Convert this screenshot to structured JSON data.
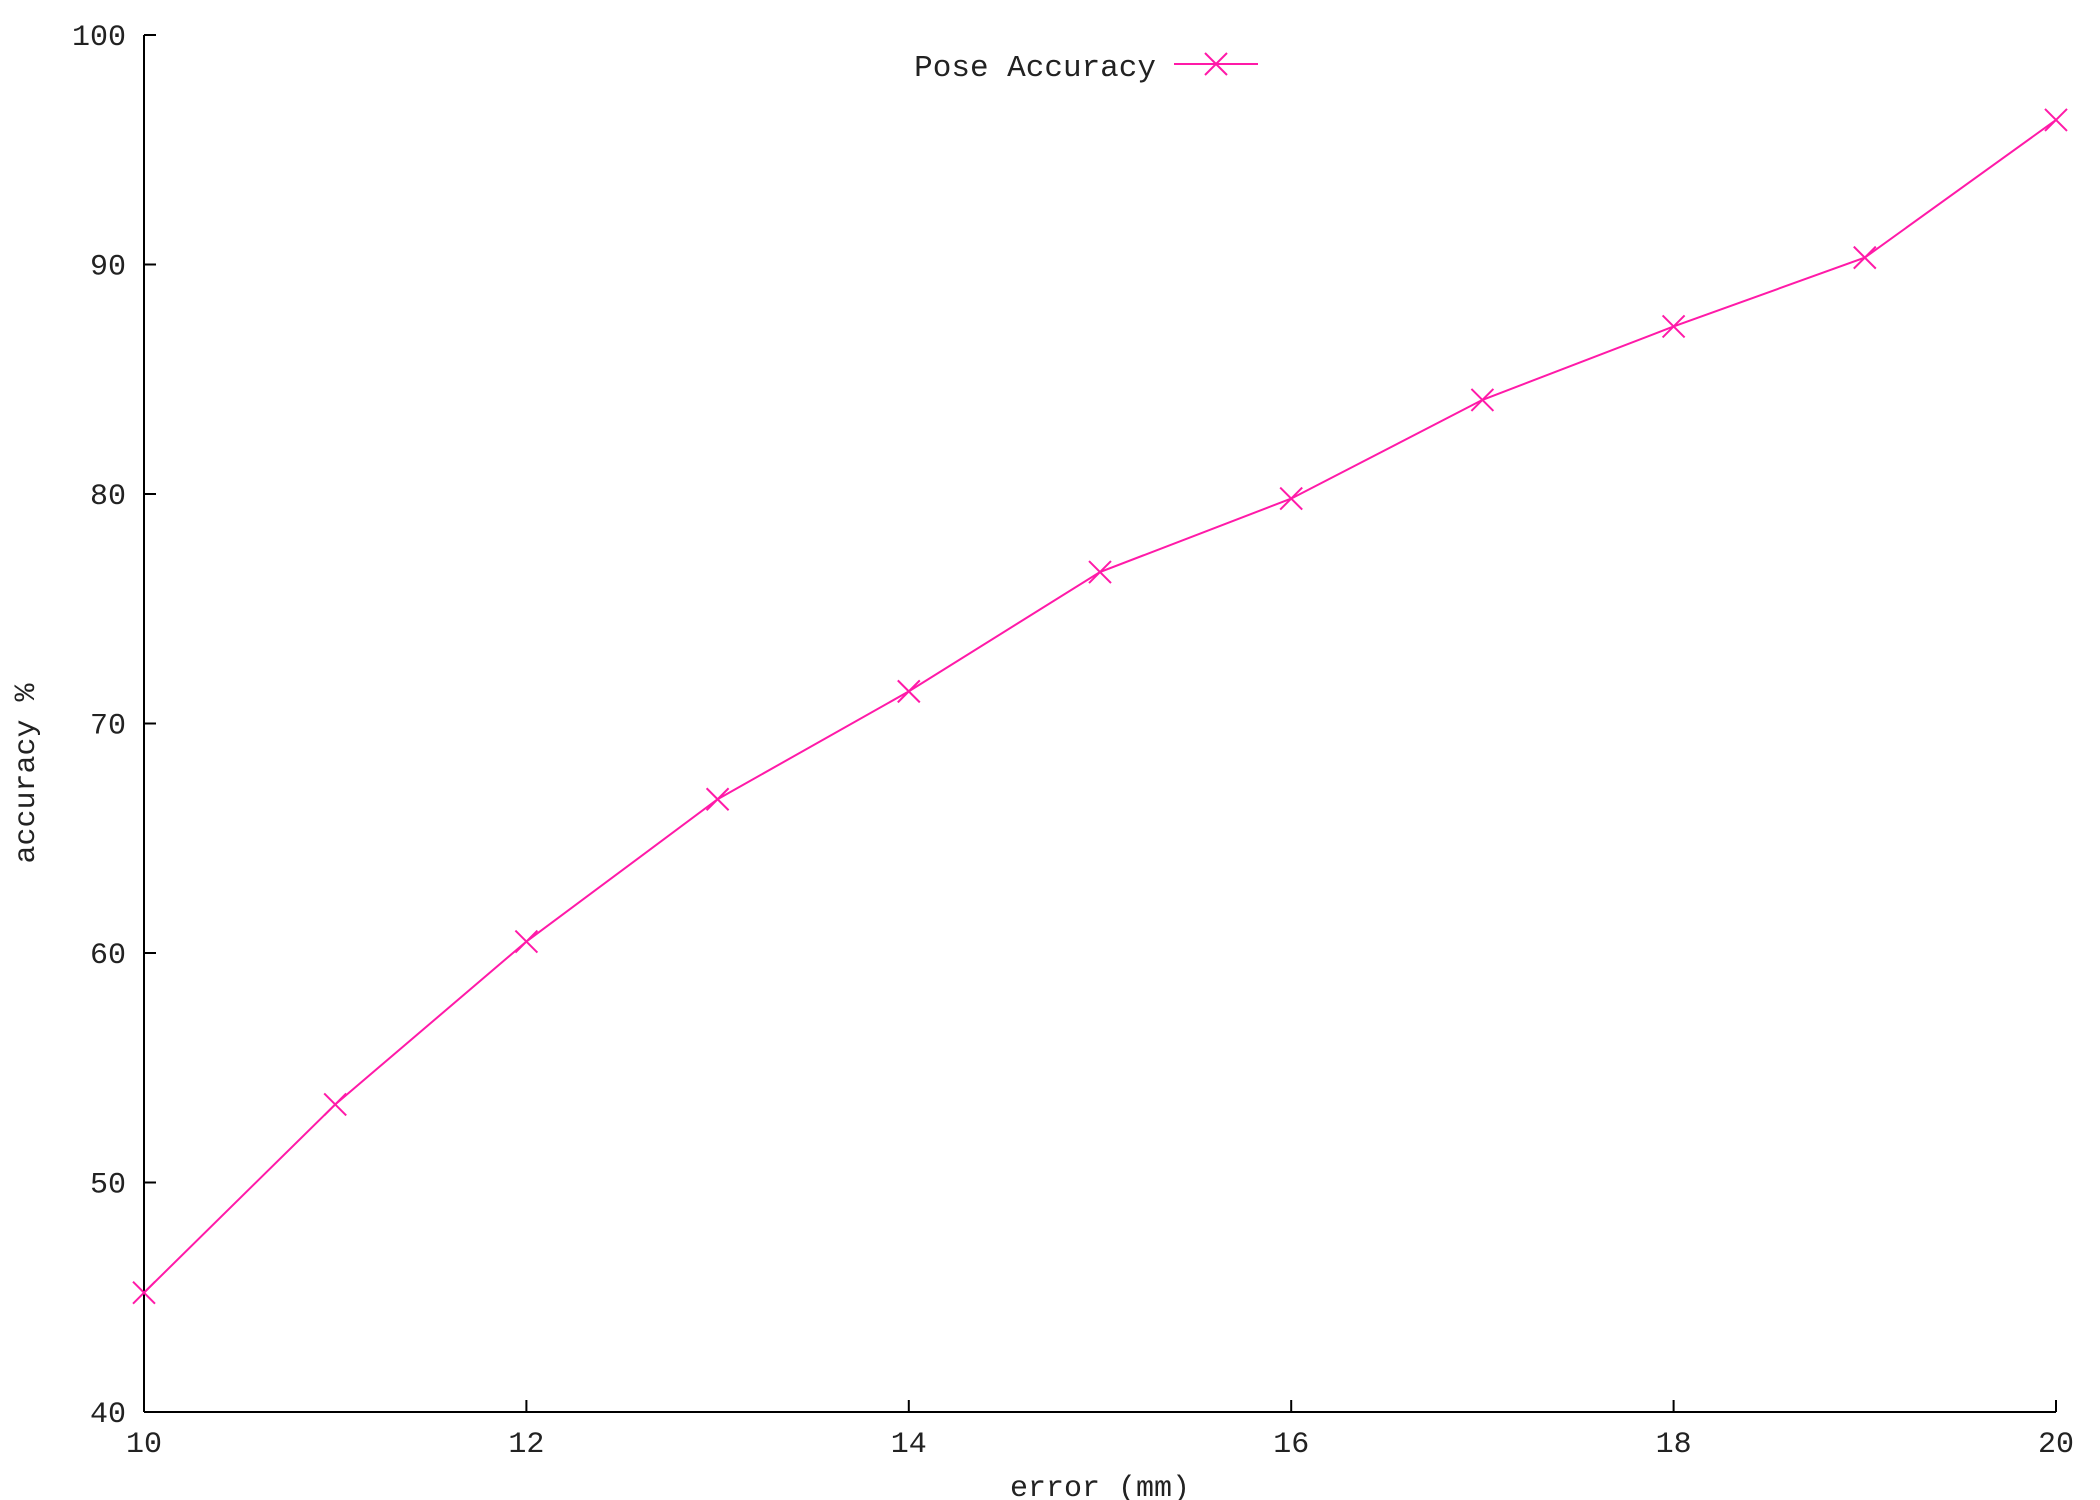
{
  "chart_data": {
    "type": "line",
    "title": "",
    "xlabel": "error (mm)",
    "ylabel": "accuracy %",
    "xlim": [
      10,
      20
    ],
    "ylim": [
      40,
      100
    ],
    "x_ticks": [
      "10",
      "12",
      "14",
      "16",
      "18",
      "20"
    ],
    "y_ticks": [
      "40",
      "50",
      "60",
      "70",
      "80",
      "90",
      "100"
    ],
    "grid": false,
    "legend_position": "top-center",
    "series": [
      {
        "name": "Pose Accuracy",
        "color": "#ff1aa8",
        "marker": "x",
        "x": [
          10,
          11,
          12,
          13,
          14,
          15,
          16,
          17,
          18,
          19,
          20
        ],
        "y": [
          45.2,
          53.4,
          60.5,
          66.7,
          71.4,
          76.6,
          79.8,
          84.1,
          87.3,
          90.3,
          96.3
        ]
      }
    ]
  }
}
